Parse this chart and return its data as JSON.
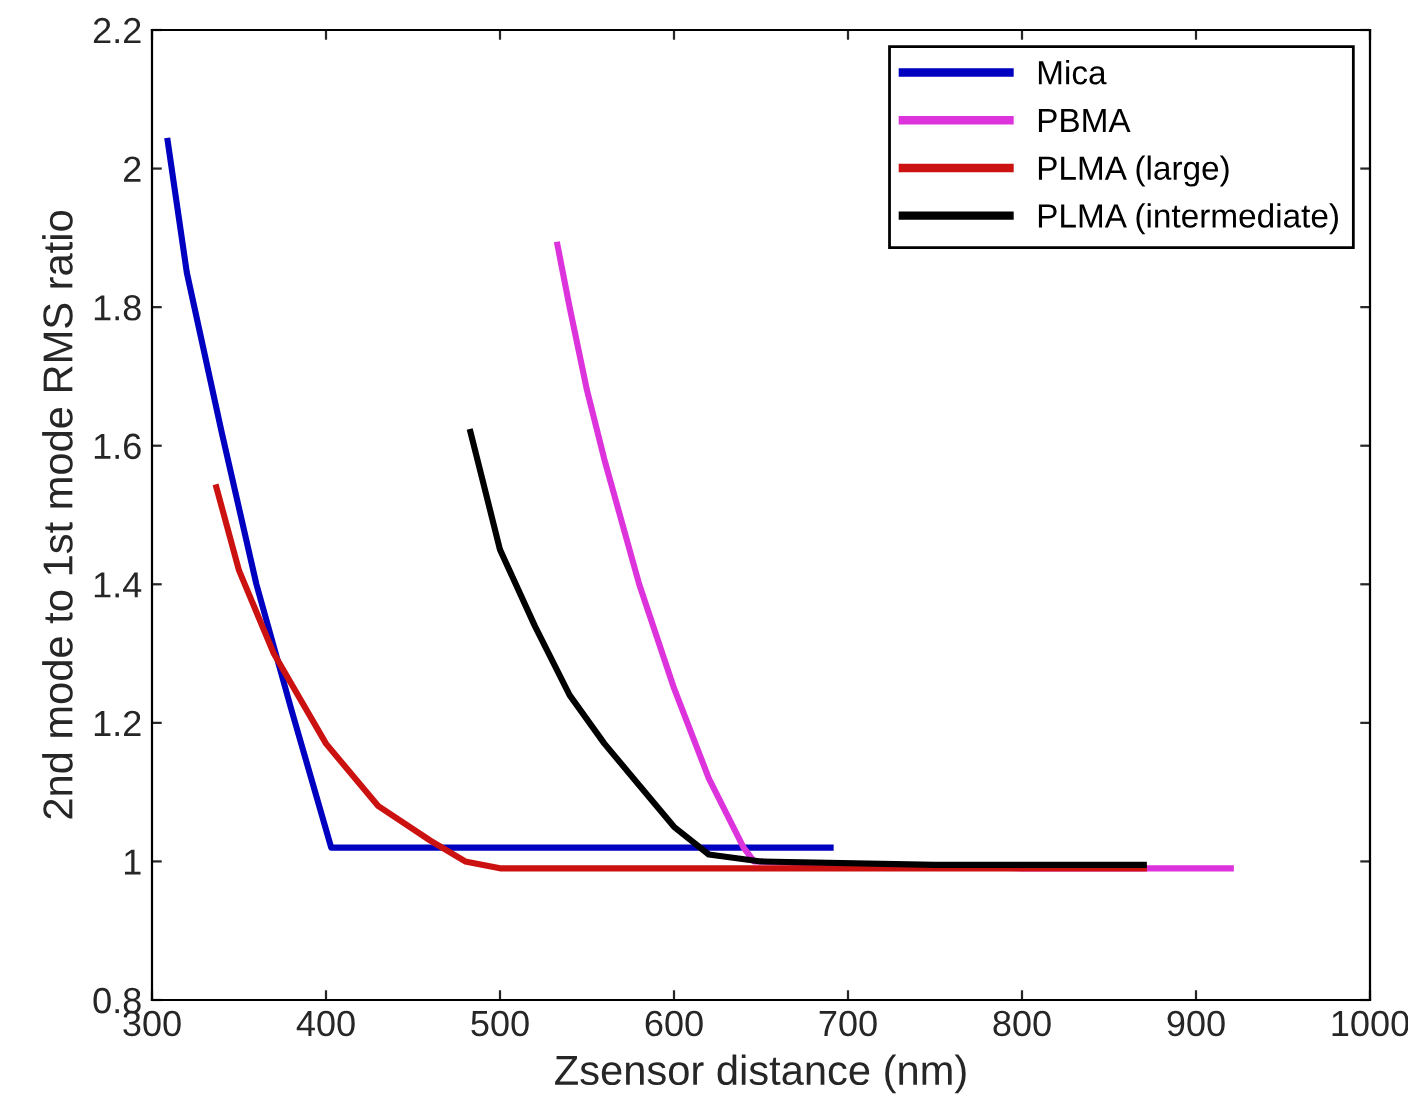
{
  "chart_data": {
    "type": "line",
    "xlabel": "Zsensor distance (nm)",
    "ylabel": "2nd mode to 1st mode RMS ratio",
    "xlim": [
      300,
      1000
    ],
    "xticks": [
      300,
      400,
      500,
      600,
      700,
      800,
      900,
      1000
    ],
    "ylim": [
      0.8,
      2.2
    ],
    "yticks": [
      0.8,
      1,
      1.2,
      1.4,
      1.6,
      1.8,
      2,
      2.2
    ],
    "grid": false,
    "legend": "top right",
    "marker": "none",
    "line_style": "solid",
    "series": [
      {
        "name": "Mica",
        "color": "#0000c0",
        "x": [
          309,
          320,
          340,
          360,
          380,
          403,
          450,
          500,
          550,
          600,
          650,
          690
        ],
        "values": [
          2.04,
          1.85,
          1.62,
          1.4,
          1.22,
          1.02,
          1.02,
          1.02,
          1.02,
          1.02,
          1.02,
          1.02
        ]
      },
      {
        "name": "PBMA",
        "color": "#dd33dd",
        "x": [
          533,
          540,
          550,
          560,
          580,
          600,
          620,
          640,
          646,
          700,
          800,
          920
        ],
        "values": [
          1.89,
          1.8,
          1.68,
          1.58,
          1.4,
          1.25,
          1.12,
          1.02,
          1.0,
          0.995,
          0.99,
          0.99
        ]
      },
      {
        "name": "PLMA (large)",
        "color": "#cc1111",
        "x": [
          337,
          350,
          370,
          400,
          430,
          460,
          480,
          500,
          600,
          700,
          800,
          870
        ],
        "values": [
          1.54,
          1.42,
          1.3,
          1.17,
          1.08,
          1.03,
          1.0,
          0.99,
          0.99,
          0.99,
          0.99,
          0.99
        ]
      },
      {
        "name": "PLMA (intermediate)",
        "color": "#000000",
        "x": [
          483,
          490,
          500,
          520,
          540,
          560,
          580,
          600,
          620,
          650,
          750,
          870
        ],
        "values": [
          1.62,
          1.55,
          1.45,
          1.34,
          1.24,
          1.17,
          1.11,
          1.05,
          1.01,
          1.0,
          0.995,
          0.995
        ]
      }
    ]
  }
}
